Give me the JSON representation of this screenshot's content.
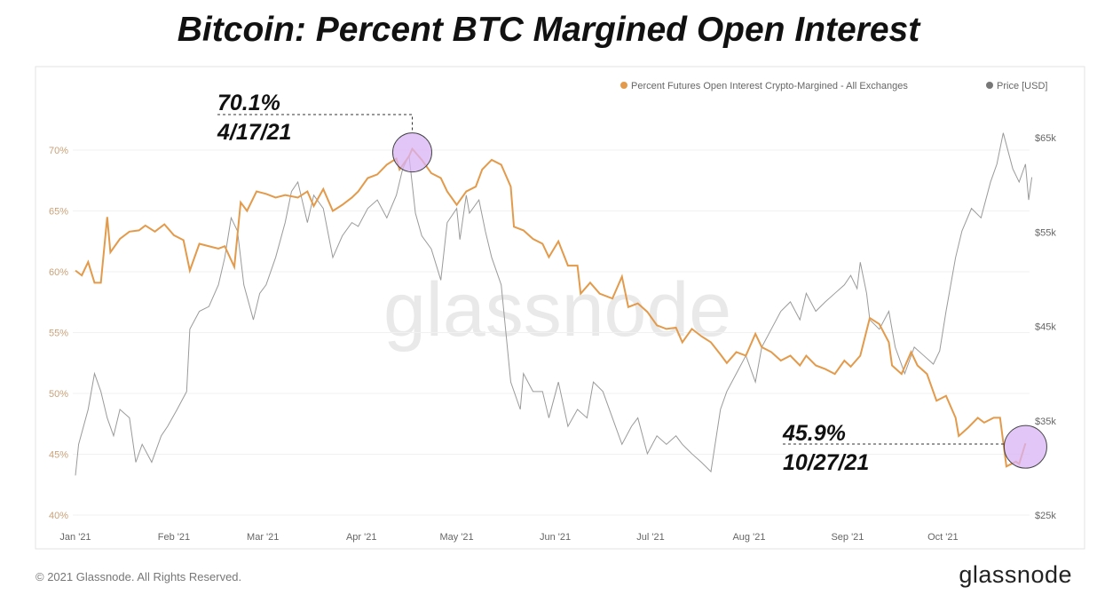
{
  "title": "Bitcoin: Percent BTC Margined Open Interest",
  "footer": "© 2021 Glassnode. All Rights Reserved.",
  "logo": "glassnode",
  "watermark": "glassnode",
  "colors": {
    "percent": "#e39a4a",
    "price": "#9a9a9a",
    "highlight": "#d9b3f5"
  },
  "chart_data": {
    "type": "line",
    "x_unit": "day of 2021 (0 = Jan 1)",
    "xlim": [
      0,
      302
    ],
    "x_ticks": [
      {
        "day": 0,
        "label": "Jan '21"
      },
      {
        "day": 31,
        "label": "Feb '21"
      },
      {
        "day": 59,
        "label": "Mar '21"
      },
      {
        "day": 90,
        "label": "Apr '21"
      },
      {
        "day": 120,
        "label": "May '21"
      },
      {
        "day": 151,
        "label": "Jun '21"
      },
      {
        "day": 181,
        "label": "Jul '21"
      },
      {
        "day": 212,
        "label": "Aug '21"
      },
      {
        "day": 243,
        "label": "Sep '21"
      },
      {
        "day": 273,
        "label": "Oct '21"
      }
    ],
    "y_left": {
      "ylim": [
        40,
        70
      ],
      "ticks": [
        {
          "v": 40,
          "label": "40%"
        },
        {
          "v": 45,
          "label": "45%"
        },
        {
          "v": 50,
          "label": "50%"
        },
        {
          "v": 55,
          "label": "55%"
        },
        {
          "v": 60,
          "label": "60%"
        },
        {
          "v": 65,
          "label": "65%"
        },
        {
          "v": 70,
          "label": "70%"
        }
      ]
    },
    "y_right": {
      "ylim": [
        25,
        65
      ],
      "ticks": [
        {
          "v": 25,
          "label": "$25k"
        },
        {
          "v": 35,
          "label": "$35k"
        },
        {
          "v": 45,
          "label": "$45k"
        },
        {
          "v": 55,
          "label": "$55k"
        },
        {
          "v": 65,
          "label": "$65k"
        }
      ]
    },
    "grid": true,
    "legend_position": "top-right",
    "series": [
      {
        "name": "Percent Futures Open Interest Crypto-Margined - All Exchanges",
        "axis": "left",
        "unit": "%",
        "points": [
          [
            0,
            60.1
          ],
          [
            2,
            59.7
          ],
          [
            4,
            60.8
          ],
          [
            6,
            59.1
          ],
          [
            8,
            59.1
          ],
          [
            10,
            64.5
          ],
          [
            11,
            61.6
          ],
          [
            14,
            62.7
          ],
          [
            17,
            63.3
          ],
          [
            20,
            63.4
          ],
          [
            22,
            63.8
          ],
          [
            25,
            63.3
          ],
          [
            28,
            63.9
          ],
          [
            31,
            63.0
          ],
          [
            34,
            62.6
          ],
          [
            36,
            60.1
          ],
          [
            39,
            62.3
          ],
          [
            42,
            62.1
          ],
          [
            45,
            61.9
          ],
          [
            47,
            62.1
          ],
          [
            50,
            60.4
          ],
          [
            52,
            65.7
          ],
          [
            54,
            65.0
          ],
          [
            57,
            66.6
          ],
          [
            60,
            66.4
          ],
          [
            63,
            66.1
          ],
          [
            66,
            66.3
          ],
          [
            70,
            66.1
          ],
          [
            73,
            66.6
          ],
          [
            75,
            65.4
          ],
          [
            78,
            66.8
          ],
          [
            81,
            65.0
          ],
          [
            84,
            65.5
          ],
          [
            87,
            66.1
          ],
          [
            89,
            66.6
          ],
          [
            92,
            67.7
          ],
          [
            95,
            68.0
          ],
          [
            98,
            68.8
          ],
          [
            101,
            69.3
          ],
          [
            102,
            68.4
          ],
          [
            105,
            69.5
          ],
          [
            106,
            70.1
          ],
          [
            109,
            69.2
          ],
          [
            112,
            68.1
          ],
          [
            115,
            67.7
          ],
          [
            117,
            66.6
          ],
          [
            120,
            65.5
          ],
          [
            123,
            66.6
          ],
          [
            126,
            67.0
          ],
          [
            128,
            68.4
          ],
          [
            131,
            69.2
          ],
          [
            134,
            68.8
          ],
          [
            137,
            67.0
          ],
          [
            138,
            63.7
          ],
          [
            141,
            63.4
          ],
          [
            144,
            62.7
          ],
          [
            147,
            62.3
          ],
          [
            149,
            61.2
          ],
          [
            152,
            62.5
          ],
          [
            155,
            60.5
          ],
          [
            158,
            60.5
          ],
          [
            159,
            58.2
          ],
          [
            162,
            59.1
          ],
          [
            165,
            58.2
          ],
          [
            169,
            57.8
          ],
          [
            172,
            59.6
          ],
          [
            174,
            57.1
          ],
          [
            177,
            57.4
          ],
          [
            180,
            56.7
          ],
          [
            183,
            55.6
          ],
          [
            186,
            55.3
          ],
          [
            189,
            55.4
          ],
          [
            191,
            54.2
          ],
          [
            194,
            55.3
          ],
          [
            197,
            54.7
          ],
          [
            200,
            54.2
          ],
          [
            203,
            53.2
          ],
          [
            205,
            52.5
          ],
          [
            208,
            53.4
          ],
          [
            211,
            53.1
          ],
          [
            214,
            54.9
          ],
          [
            216,
            53.8
          ],
          [
            219,
            53.4
          ],
          [
            222,
            52.7
          ],
          [
            225,
            53.1
          ],
          [
            228,
            52.3
          ],
          [
            230,
            53.1
          ],
          [
            233,
            52.3
          ],
          [
            236,
            52.0
          ],
          [
            239,
            51.6
          ],
          [
            242,
            52.7
          ],
          [
            244,
            52.2
          ],
          [
            247,
            53.1
          ],
          [
            250,
            56.2
          ],
          [
            253,
            55.7
          ],
          [
            256,
            54.2
          ],
          [
            257,
            52.3
          ],
          [
            260,
            51.6
          ],
          [
            263,
            53.4
          ],
          [
            265,
            52.3
          ],
          [
            268,
            51.6
          ],
          [
            271,
            49.4
          ],
          [
            274,
            49.8
          ],
          [
            277,
            48.0
          ],
          [
            278,
            46.5
          ],
          [
            281,
            47.2
          ],
          [
            284,
            48.0
          ],
          [
            286,
            47.6
          ],
          [
            289,
            48.0
          ],
          [
            291,
            48.0
          ],
          [
            293,
            44.0
          ],
          [
            296,
            44.4
          ],
          [
            297,
            44.2
          ],
          [
            299,
            45.9
          ]
        ]
      },
      {
        "name": "Price [USD]",
        "axis": "right",
        "unit": "$k",
        "points": [
          [
            0,
            29.2
          ],
          [
            1,
            32.5
          ],
          [
            4,
            36.2
          ],
          [
            6,
            40.0
          ],
          [
            8,
            38.1
          ],
          [
            10,
            35.3
          ],
          [
            12,
            33.4
          ],
          [
            14,
            36.2
          ],
          [
            17,
            35.3
          ],
          [
            19,
            30.6
          ],
          [
            21,
            32.5
          ],
          [
            24,
            30.6
          ],
          [
            27,
            33.4
          ],
          [
            29,
            34.4
          ],
          [
            32,
            36.2
          ],
          [
            35,
            38.1
          ],
          [
            36,
            44.7
          ],
          [
            39,
            46.6
          ],
          [
            42,
            47.1
          ],
          [
            45,
            49.4
          ],
          [
            47,
            52.3
          ],
          [
            49,
            56.5
          ],
          [
            51,
            55.1
          ],
          [
            53,
            49.4
          ],
          [
            56,
            45.7
          ],
          [
            58,
            48.5
          ],
          [
            60,
            49.4
          ],
          [
            63,
            52.3
          ],
          [
            66,
            56.0
          ],
          [
            68,
            59.3
          ],
          [
            70,
            60.3
          ],
          [
            73,
            56.0
          ],
          [
            75,
            58.9
          ],
          [
            78,
            57.5
          ],
          [
            81,
            52.3
          ],
          [
            84,
            54.6
          ],
          [
            87,
            56.0
          ],
          [
            89,
            55.6
          ],
          [
            92,
            57.5
          ],
          [
            95,
            58.4
          ],
          [
            98,
            56.5
          ],
          [
            101,
            58.9
          ],
          [
            103,
            61.7
          ],
          [
            105,
            63.1
          ],
          [
            107,
            57.0
          ],
          [
            109,
            54.6
          ],
          [
            112,
            53.2
          ],
          [
            115,
            49.9
          ],
          [
            117,
            56.0
          ],
          [
            120,
            57.5
          ],
          [
            121,
            54.2
          ],
          [
            123,
            58.9
          ],
          [
            124,
            57.0
          ],
          [
            127,
            58.4
          ],
          [
            129,
            55.1
          ],
          [
            131,
            52.3
          ],
          [
            134,
            49.4
          ],
          [
            137,
            39.1
          ],
          [
            140,
            36.2
          ],
          [
            141,
            40.0
          ],
          [
            144,
            38.1
          ],
          [
            147,
            38.1
          ],
          [
            149,
            35.3
          ],
          [
            152,
            39.1
          ],
          [
            155,
            34.4
          ],
          [
            158,
            36.2
          ],
          [
            161,
            35.3
          ],
          [
            163,
            39.1
          ],
          [
            166,
            38.1
          ],
          [
            169,
            35.3
          ],
          [
            172,
            32.5
          ],
          [
            175,
            34.4
          ],
          [
            177,
            35.3
          ],
          [
            180,
            31.5
          ],
          [
            183,
            33.4
          ],
          [
            186,
            32.5
          ],
          [
            189,
            33.4
          ],
          [
            191,
            32.5
          ],
          [
            194,
            31.5
          ],
          [
            197,
            30.6
          ],
          [
            200,
            29.6
          ],
          [
            203,
            36.2
          ],
          [
            205,
            38.1
          ],
          [
            208,
            40.0
          ],
          [
            211,
            41.9
          ],
          [
            214,
            39.1
          ],
          [
            216,
            42.8
          ],
          [
            219,
            44.7
          ],
          [
            222,
            46.6
          ],
          [
            225,
            47.6
          ],
          [
            228,
            45.7
          ],
          [
            230,
            48.5
          ],
          [
            233,
            46.6
          ],
          [
            236,
            47.6
          ],
          [
            239,
            48.5
          ],
          [
            242,
            49.4
          ],
          [
            244,
            50.4
          ],
          [
            246,
            49.0
          ],
          [
            247,
            51.8
          ],
          [
            249,
            48.5
          ],
          [
            250,
            45.7
          ],
          [
            253,
            44.7
          ],
          [
            256,
            46.6
          ],
          [
            258,
            42.8
          ],
          [
            261,
            40.0
          ],
          [
            264,
            42.8
          ],
          [
            267,
            41.9
          ],
          [
            270,
            41.0
          ],
          [
            272,
            42.4
          ],
          [
            274,
            46.6
          ],
          [
            277,
            52.3
          ],
          [
            279,
            55.1
          ],
          [
            282,
            57.5
          ],
          [
            285,
            56.5
          ],
          [
            288,
            60.3
          ],
          [
            290,
            62.2
          ],
          [
            292,
            65.5
          ],
          [
            295,
            61.7
          ],
          [
            297,
            60.3
          ],
          [
            299,
            62.2
          ],
          [
            300,
            58.4
          ],
          [
            301,
            60.8
          ]
        ]
      }
    ],
    "annotations": [
      {
        "value_label": "70.1%",
        "date_label": "4/17/21",
        "day": 106,
        "value": 70.1
      },
      {
        "value_label": "45.9%",
        "date_label": "10/27/21",
        "day": 299,
        "value": 45.9
      }
    ]
  }
}
